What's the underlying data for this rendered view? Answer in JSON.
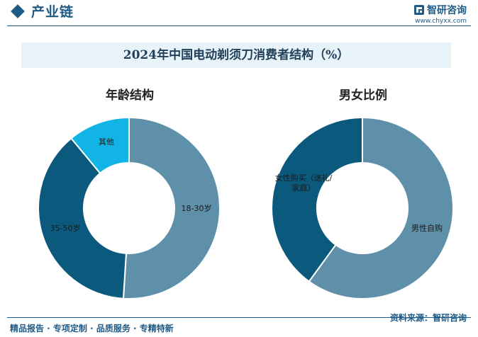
{
  "header": {
    "section_title": "产业链",
    "brand_name": "智研咨询",
    "brand_url": "www.chyxx.com"
  },
  "banner_title": "2024年中国电动剃须刀消费者结构（%）",
  "footer": {
    "left_text": "精品报告 · 专项定制 · 品质服务 · 专精特新",
    "source_label": "资料来源：智研咨询"
  },
  "colors": {
    "brand": "#1f5b86",
    "slice_light": "#5f90a9",
    "slice_dark": "#0b5a7e",
    "slice_bright": "#12b4e6"
  },
  "chart_data": [
    {
      "type": "pie",
      "title": "年龄结构",
      "donut": true,
      "labels": [
        "18-30岁",
        "35-50岁",
        "其他"
      ],
      "values": [
        51,
        38,
        11
      ],
      "colors": [
        "#5f90a9",
        "#0b5a7e",
        "#12b4e6"
      ]
    },
    {
      "type": "pie",
      "title": "男女比例",
      "donut": true,
      "labels": [
        "男性自购",
        "女性购买（送礼/家庭）"
      ],
      "values": [
        60,
        40
      ],
      "colors": [
        "#5f90a9",
        "#0b5a7e"
      ]
    }
  ]
}
